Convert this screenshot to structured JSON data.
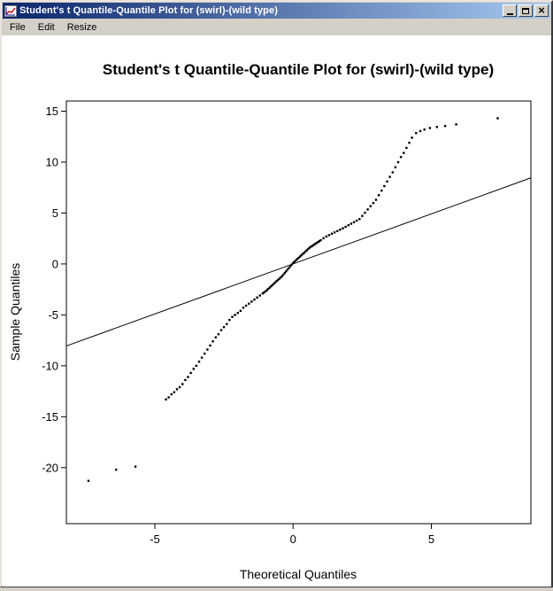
{
  "window": {
    "title": "Student's t Quantile-Quantile Plot for (swirl)-(wild type)",
    "icons": {
      "close": "×"
    }
  },
  "menu": {
    "items": [
      {
        "label": "File"
      },
      {
        "label": "Edit"
      },
      {
        "label": "Resize"
      }
    ]
  },
  "colors": {
    "titlebar_left": "#0a246a",
    "titlebar_right": "#a6caf0",
    "chrome": "#d4d0c8",
    "plot_background": "#ffffff",
    "point_color": "#000000",
    "line_color": "#000000",
    "axis_color": "#000000"
  },
  "chart_data": {
    "type": "scatter",
    "title": "Student's t Quantile-Quantile Plot for (swirl)-(wild type)",
    "xlabel": "Theoretical Quantiles",
    "ylabel": "Sample Quantiles",
    "xlim": [
      -8.2,
      8.6
    ],
    "ylim": [
      -25.5,
      16.0
    ],
    "xticks": [
      -5,
      0,
      5
    ],
    "yticks": [
      -20,
      -15,
      -10,
      -5,
      0,
      5,
      10,
      15
    ],
    "grid": false,
    "legend": null,
    "reference_line": {
      "x1": -8.2,
      "y1": -8.05,
      "x2": 8.6,
      "y2": 8.45
    },
    "points": [
      [
        -7.4,
        -21.3
      ],
      [
        -6.4,
        -20.2
      ],
      [
        -5.7,
        -19.9
      ],
      [
        -4.6,
        -13.3
      ],
      [
        -4.5,
        -13.1
      ],
      [
        -4.4,
        -12.8
      ],
      [
        -4.3,
        -12.6
      ],
      [
        -4.2,
        -12.3
      ],
      [
        -4.1,
        -12.1
      ],
      [
        -4.0,
        -11.8
      ],
      [
        -3.9,
        -11.4
      ],
      [
        -3.8,
        -11.1
      ],
      [
        -3.7,
        -10.7
      ],
      [
        -3.6,
        -10.3
      ],
      [
        -3.5,
        -10.0
      ],
      [
        -3.4,
        -9.6
      ],
      [
        -3.3,
        -9.2
      ],
      [
        -3.2,
        -8.8
      ],
      [
        -3.1,
        -8.4
      ],
      [
        -3.0,
        -8.0
      ],
      [
        -2.9,
        -7.6
      ],
      [
        -2.8,
        -7.2
      ],
      [
        -2.7,
        -6.9
      ],
      [
        -2.6,
        -6.5
      ],
      [
        -2.5,
        -6.2
      ],
      [
        -2.4,
        -5.9
      ],
      [
        -2.3,
        -5.5
      ],
      [
        -2.2,
        -5.2
      ],
      [
        -2.1,
        -5.0
      ],
      [
        -2.0,
        -4.8
      ],
      [
        -1.9,
        -4.6
      ],
      [
        -1.8,
        -4.3
      ],
      [
        -1.7,
        -4.1
      ],
      [
        -1.6,
        -3.9
      ],
      [
        -1.5,
        -3.7
      ],
      [
        -1.4,
        -3.5
      ],
      [
        -1.3,
        -3.3
      ],
      [
        -1.2,
        -3.1
      ],
      [
        -1.1,
        -2.9
      ],
      [
        -1.05,
        -2.8
      ],
      [
        -1.0,
        -2.7
      ],
      [
        -0.95,
        -2.58
      ],
      [
        -0.9,
        -2.45
      ],
      [
        -0.85,
        -2.33
      ],
      [
        -0.8,
        -2.2
      ],
      [
        -0.75,
        -2.08
      ],
      [
        -0.7,
        -1.95
      ],
      [
        -0.65,
        -1.83
      ],
      [
        -0.6,
        -1.7
      ],
      [
        -0.55,
        -1.58
      ],
      [
        -0.5,
        -1.45
      ],
      [
        -0.45,
        -1.33
      ],
      [
        -0.4,
        -1.2
      ],
      [
        -0.35,
        -1.04
      ],
      [
        -0.3,
        -0.88
      ],
      [
        -0.25,
        -0.71
      ],
      [
        -0.2,
        -0.55
      ],
      [
        -0.15,
        -0.39
      ],
      [
        -0.1,
        -0.23
      ],
      [
        -0.05,
        -0.06
      ],
      [
        0.0,
        0.1
      ],
      [
        0.05,
        0.23
      ],
      [
        0.1,
        0.35
      ],
      [
        0.15,
        0.48
      ],
      [
        0.2,
        0.6
      ],
      [
        0.25,
        0.73
      ],
      [
        0.3,
        0.85
      ],
      [
        0.35,
        0.98
      ],
      [
        0.4,
        1.1
      ],
      [
        0.45,
        1.23
      ],
      [
        0.5,
        1.35
      ],
      [
        0.55,
        1.48
      ],
      [
        0.6,
        1.6
      ],
      [
        0.65,
        1.7
      ],
      [
        0.7,
        1.78
      ],
      [
        0.75,
        1.88
      ],
      [
        0.8,
        1.97
      ],
      [
        0.85,
        2.06
      ],
      [
        0.9,
        2.15
      ],
      [
        0.95,
        2.24
      ],
      [
        1.0,
        2.33
      ],
      [
        1.1,
        2.52
      ],
      [
        1.2,
        2.7
      ],
      [
        1.3,
        2.83
      ],
      [
        1.4,
        2.97
      ],
      [
        1.5,
        3.1
      ],
      [
        1.6,
        3.23
      ],
      [
        1.7,
        3.37
      ],
      [
        1.8,
        3.5
      ],
      [
        1.9,
        3.65
      ],
      [
        2.0,
        3.8
      ],
      [
        2.1,
        3.95
      ],
      [
        2.2,
        4.1
      ],
      [
        2.3,
        4.25
      ],
      [
        2.4,
        4.4
      ],
      [
        2.5,
        4.72
      ],
      [
        2.6,
        5.03
      ],
      [
        2.7,
        5.35
      ],
      [
        2.8,
        5.67
      ],
      [
        2.9,
        5.98
      ],
      [
        3.0,
        6.3
      ],
      [
        3.1,
        6.75
      ],
      [
        3.2,
        7.2
      ],
      [
        3.3,
        7.65
      ],
      [
        3.4,
        8.1
      ],
      [
        3.5,
        8.55
      ],
      [
        3.6,
        9.0
      ],
      [
        3.7,
        9.5
      ],
      [
        3.8,
        10.0
      ],
      [
        3.9,
        10.5
      ],
      [
        4.0,
        10.9
      ],
      [
        4.1,
        11.4
      ],
      [
        4.2,
        11.9
      ],
      [
        4.3,
        12.4
      ],
      [
        4.45,
        12.85
      ],
      [
        4.6,
        13.05
      ],
      [
        4.75,
        13.2
      ],
      [
        4.95,
        13.35
      ],
      [
        5.2,
        13.45
      ],
      [
        5.5,
        13.55
      ],
      [
        5.9,
        13.7
      ],
      [
        7.4,
        14.3
      ]
    ]
  }
}
